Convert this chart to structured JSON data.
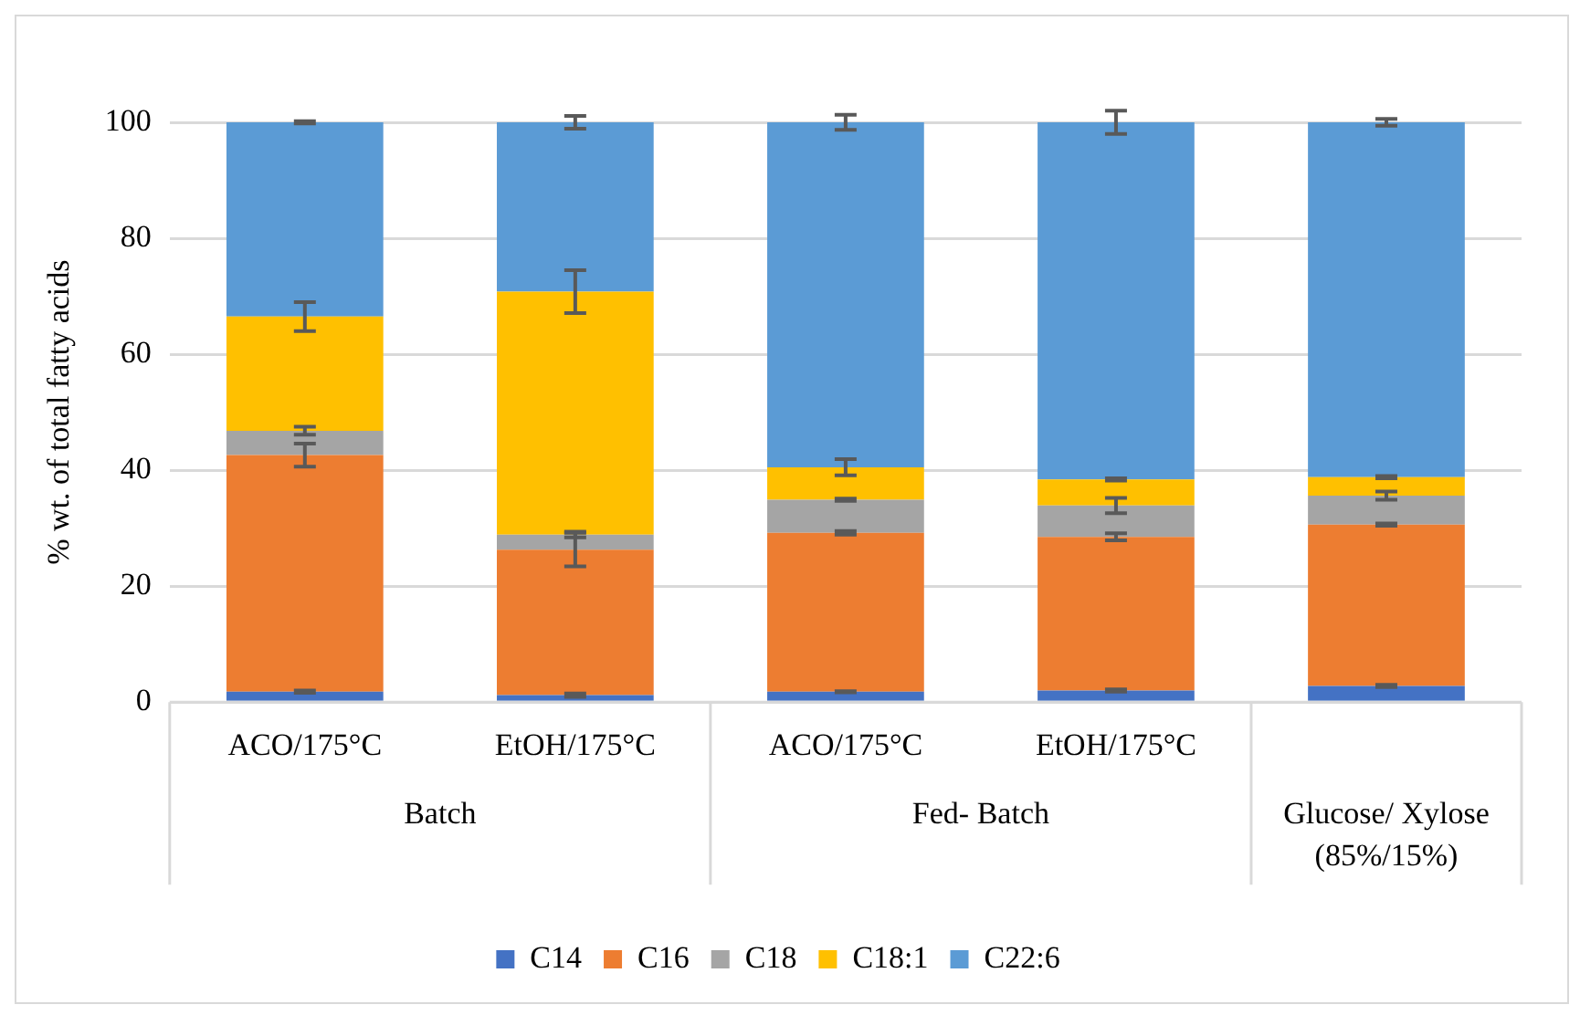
{
  "chart_data": {
    "type": "bar",
    "stacked": true,
    "ylabel": "% wt. of total fatty acids",
    "categories": [
      "ACO/175°C",
      "EtOH/175°C",
      "ACO/175°C",
      "EtOH/175°C",
      null
    ],
    "annotations": [
      "Batch",
      "Fed- Batch",
      "Glucose/ Xylose (85%/15%)"
    ],
    "series": [
      {
        "name": "C14",
        "color": "#4472c4",
        "values": [
          1.8,
          1.2,
          1.8,
          2.0,
          2.8
        ],
        "errors": [
          0.2,
          0.3,
          0.1,
          0.2,
          0.2
        ]
      },
      {
        "name": "C16",
        "color": "#ed7d31",
        "values": [
          40.8,
          25.1,
          27.4,
          26.5,
          27.8
        ],
        "errors": [
          2.0,
          2.9,
          0.3,
          0.6,
          0.2
        ]
      },
      {
        "name": "C18",
        "color": "#a5a5a5",
        "values": [
          4.2,
          2.6,
          5.7,
          5.4,
          5.0
        ],
        "errors": [
          0.7,
          0.5,
          0.2,
          1.3,
          0.7
        ]
      },
      {
        "name": "C18:1",
        "color": "#ffc000",
        "values": [
          19.7,
          41.9,
          5.6,
          4.5,
          3.2
        ],
        "errors": [
          2.5,
          3.7,
          1.4,
          0.2,
          0.2
        ]
      },
      {
        "name": "C22:6",
        "color": "#5b9bd5",
        "values": [
          33.5,
          29.2,
          59.5,
          61.6,
          61.2
        ],
        "errors": [
          0.2,
          1.1,
          1.3,
          2.0,
          0.6
        ]
      }
    ],
    "ylim": [
      0,
      100
    ],
    "yticks": [
      0,
      20,
      40,
      60,
      80,
      100
    ],
    "grid": "y",
    "legend": "bottom"
  }
}
